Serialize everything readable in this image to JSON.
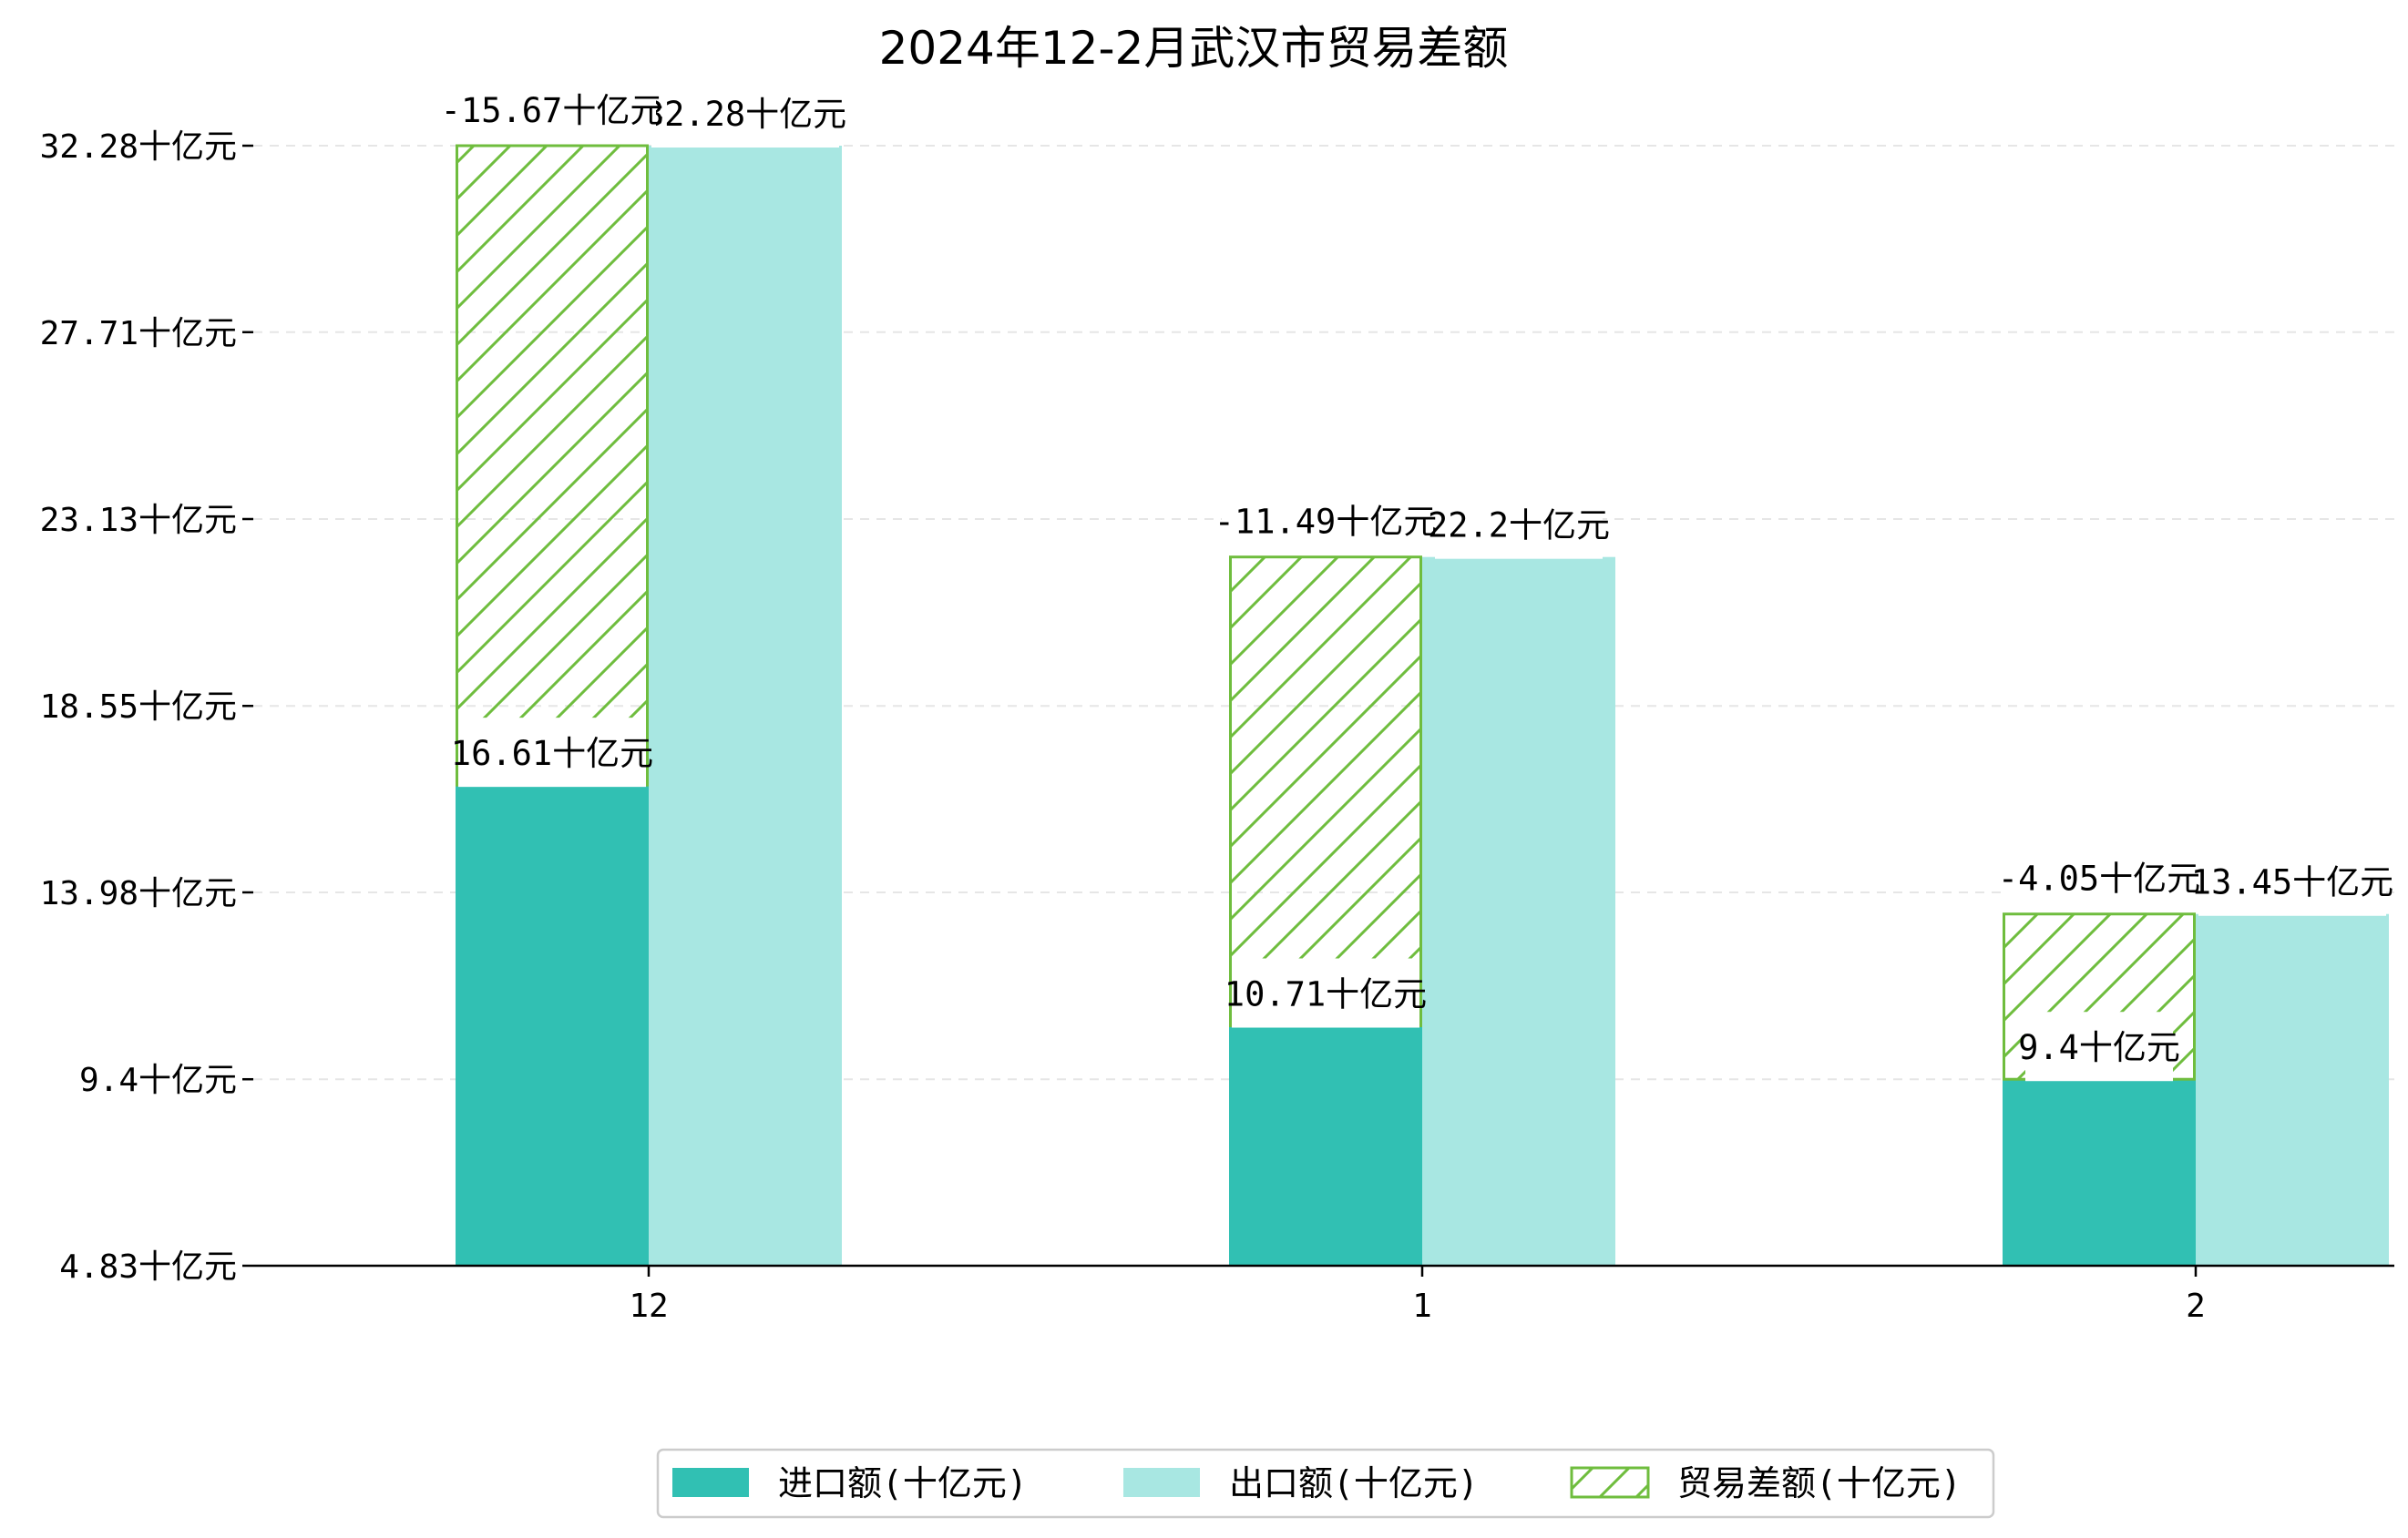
{
  "chart_data": {
    "type": "bar",
    "title": "2024年12-2月武汉市贸易差额",
    "categories": [
      "12",
      "1",
      "2"
    ],
    "series": [
      {
        "name": "进口额(十亿元)",
        "values": [
          16.61,
          10.71,
          9.4
        ],
        "labels": [
          "16.61十亿元",
          "10.71十亿元",
          "9.4十亿元"
        ],
        "color": "#31c0b3"
      },
      {
        "name": "出口额(十亿元)",
        "values": [
          32.28,
          22.2,
          13.45
        ],
        "labels": [
          "32.28十亿元",
          "22.2十亿元",
          "13.45十亿元"
        ],
        "color": "#a8e7e2"
      },
      {
        "name": "贸易差额(十亿元)",
        "values": [
          -15.67,
          -11.49,
          -4.05
        ],
        "labels": [
          "-15.67十亿元",
          "-11.49十亿元",
          "-4.05十亿元"
        ],
        "color": "#6fbd3e"
      }
    ],
    "yticks": [
      "4.83十亿元",
      "9.4十亿元",
      "13.98十亿元",
      "18.55十亿元",
      "23.13十亿元",
      "27.71十亿元",
      "32.28十亿元"
    ],
    "ytick_values": [
      4.83,
      9.4,
      13.98,
      18.55,
      23.13,
      27.71,
      32.28
    ],
    "ylim": [
      4.83,
      33.3
    ],
    "grid": true,
    "legend": "bottom-center"
  }
}
